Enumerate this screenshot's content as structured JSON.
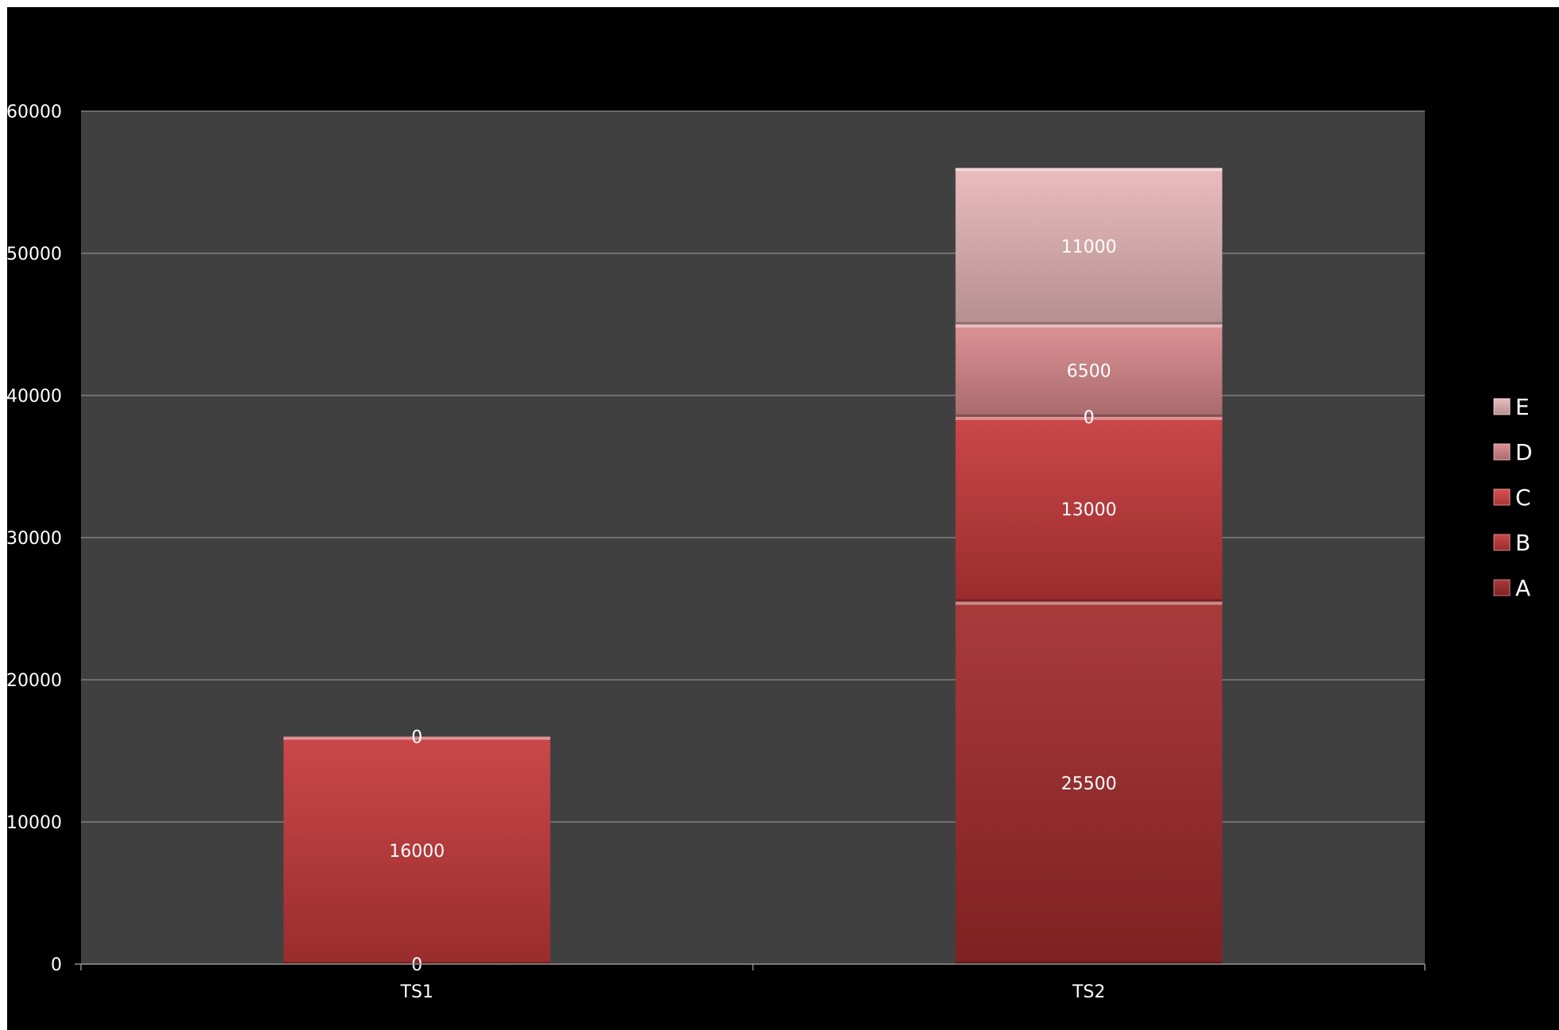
{
  "chart_data": {
    "type": "bar",
    "stacked": true,
    "categories": [
      "TS1",
      "TS2"
    ],
    "series": [
      {
        "name": "A",
        "values": [
          0,
          25500
        ],
        "labels": [
          "0",
          "25500"
        ],
        "color": "#A12A2C"
      },
      {
        "name": "B",
        "values": [
          16000,
          13000
        ],
        "labels": [
          "16000",
          "13000"
        ],
        "color": "#C5383A"
      },
      {
        "name": "C",
        "values": [
          0,
          0
        ],
        "labels": [
          "0",
          "0"
        ],
        "color": "#D84345"
      },
      {
        "name": "D",
        "values": [
          null,
          6500
        ],
        "labels": [
          null,
          "6500"
        ],
        "color": "#D9898C"
      },
      {
        "name": "E",
        "values": [
          null,
          11000
        ],
        "labels": [
          null,
          "11000"
        ],
        "color": "#E8B7B8"
      }
    ],
    "ylim": [
      0,
      60000
    ],
    "yticks": [
      0,
      10000,
      20000,
      30000,
      40000,
      50000,
      60000
    ],
    "ytick_labels": [
      "0",
      "10000",
      "20000",
      "30000",
      "40000",
      "50000",
      "60000"
    ],
    "grid": true,
    "legend_position": "right",
    "legend_order": [
      "E",
      "D",
      "C",
      "B",
      "A"
    ],
    "title": "",
    "xlabel": "",
    "ylabel": "",
    "colors": {
      "background": "#000000",
      "plot_area": "#404040",
      "grid": "#8C8C8C",
      "text": "#FFFFFF"
    }
  }
}
